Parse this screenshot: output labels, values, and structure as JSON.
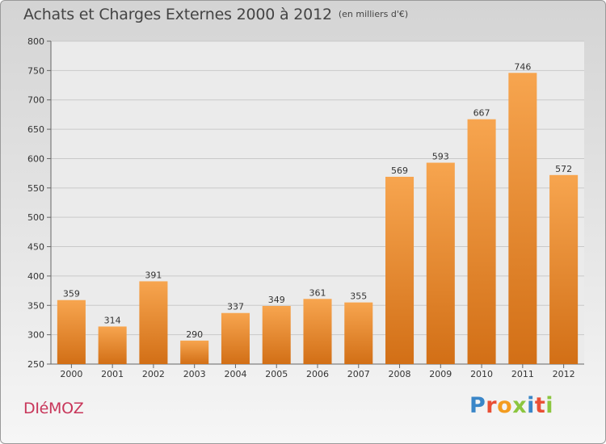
{
  "chart_data": {
    "type": "bar",
    "title": "Achats et Charges Externes 2000 à 2012",
    "subtitle": "(en milliers d'€)",
    "categories": [
      "2000",
      "2001",
      "2002",
      "2003",
      "2004",
      "2005",
      "2006",
      "2007",
      "2008",
      "2009",
      "2010",
      "2011",
      "2012"
    ],
    "values": [
      359,
      314,
      391,
      290,
      337,
      349,
      361,
      355,
      569,
      593,
      667,
      746,
      572
    ],
    "value_labels": [
      "359",
      "314",
      "391",
      "290",
      "337",
      "349",
      "361",
      "355",
      "569",
      "593",
      "667",
      "746",
      "572"
    ],
    "ylim": [
      250,
      800
    ],
    "yticks": [
      250,
      300,
      350,
      400,
      450,
      500,
      550,
      600,
      650,
      700,
      750,
      800
    ],
    "ytick_labels": [
      "250",
      "300",
      "350",
      "400",
      "450",
      "500",
      "550",
      "600",
      "650",
      "700",
      "750",
      "800"
    ],
    "grid": true,
    "bar_color_top": "#f7a54f",
    "bar_color_bottom": "#d26f16"
  },
  "commune": "DIéMOZ",
  "logo": {
    "letters": [
      "P",
      "r",
      "o",
      "x",
      "i",
      "t",
      "i"
    ],
    "colors": [
      "#3a86c8",
      "#e94f35",
      "#f39c1f",
      "#8cc63f",
      "#3a86c8",
      "#e94f35",
      "#8cc63f"
    ]
  }
}
